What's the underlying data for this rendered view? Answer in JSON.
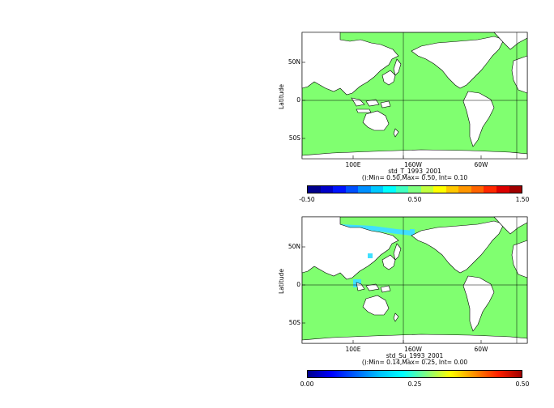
{
  "panels": [
    {
      "id": "std_T",
      "var_name": "std_T_1993_2001",
      "stats": "():Min= 0.50,Max= 0.50, Int= 0.10",
      "ylabel": "Latitude",
      "lat_ticks": [
        "50N",
        "0",
        "50S"
      ],
      "lon_ticks": [
        "100E",
        "160W",
        "60W"
      ],
      "field_color": "#80ff70",
      "colorbar": {
        "labels": [
          "-0.50",
          "0.50",
          "1.50"
        ],
        "colors": [
          "#00008c",
          "#0000c8",
          "#0014ff",
          "#0050ff",
          "#0090ff",
          "#00c8ff",
          "#00ffff",
          "#40ffc0",
          "#80ff80",
          "#c0ff40",
          "#ffff00",
          "#ffc800",
          "#ff9600",
          "#ff6400",
          "#ff2800",
          "#dc0000",
          "#a00000"
        ]
      }
    },
    {
      "id": "std_Su",
      "var_name": "std_Su_1993_2001",
      "stats": "():Min= 0.14,Max= 0.25, Int= 0.00",
      "ylabel": "Latitude",
      "lat_ticks": [
        "50N",
        "0",
        "50S"
      ],
      "lon_ticks": [
        "100E",
        "160W",
        "60W"
      ],
      "field_color": "#80ff70",
      "highlight_color": "#40e0ff",
      "colorbar": {
        "labels": [
          "0.00",
          "0.25",
          "0.50"
        ],
        "gradient": "linear-gradient(to right, #00008c, #0000ff, #0060ff, #00c0ff, #00ffff, #80ff80, #ffff00, #ff9000, #ff2000, #a00000)"
      }
    }
  ]
}
